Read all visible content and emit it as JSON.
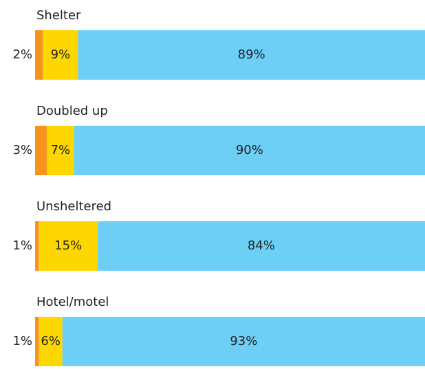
{
  "chart_data": {
    "type": "stacked-bar-horizontal",
    "categories": [
      "Shelter",
      "Doubled up",
      "Unsheltered",
      "Hotel/motel"
    ],
    "xlim": [
      0,
      100
    ],
    "series": [
      {
        "color": "#f7941d",
        "values": [
          2,
          3,
          1,
          1
        ],
        "value_labels": [
          "2%",
          "3%",
          "1%",
          "1%"
        ]
      },
      {
        "color": "#ffd700",
        "values": [
          9,
          7,
          15,
          6
        ],
        "value_labels": [
          "9%",
          "7%",
          "15%",
          "6%"
        ]
      },
      {
        "color": "#6dcff6",
        "values": [
          89,
          90,
          84,
          93
        ],
        "value_labels": [
          "89%",
          "90%",
          "84%",
          "93%"
        ]
      }
    ]
  }
}
